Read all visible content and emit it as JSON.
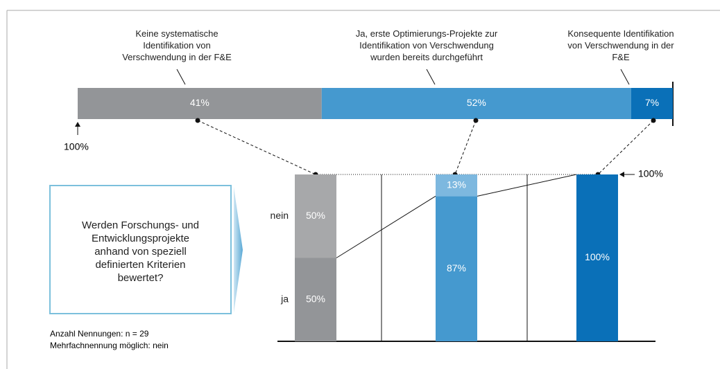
{
  "chart_data": [
    {
      "type": "hbar-stacked",
      "categories": [
        "Keine systematische\nIdentifikation von\nVerschwendung in der F&E",
        "Ja, erste Optimierungs-Projekte zur\nIdentifikation von Verschwendung\nwurden bereits durchgeführt",
        "Konsequente Identifikation\nvon Verschwendung in der\nF&E"
      ],
      "values": [
        41,
        52,
        7
      ],
      "value_labels": [
        "41%",
        "52%",
        "7%"
      ],
      "colors": [
        "#939598",
        "#4599cf",
        "#0a70b8"
      ],
      "xlim": [
        0,
        100
      ],
      "annotation": "100%"
    },
    {
      "type": "column-stacked",
      "categories": [
        null,
        null,
        null
      ],
      "series": [
        {
          "name": "ja",
          "colors": [
            "#939598",
            "#4599cf",
            "#0a70b8"
          ],
          "values": [
            50,
            87,
            100
          ],
          "value_labels": [
            "50%",
            "87%",
            "100%"
          ]
        },
        {
          "name": "nein",
          "colors": [
            "#a7a8aa",
            "#7db8df",
            "#0a70b8"
          ],
          "values": [
            50,
            13,
            0
          ],
          "value_labels": [
            "50%",
            "13%",
            null
          ]
        }
      ],
      "ylim": [
        0,
        100
      ],
      "annotation": "100%"
    }
  ],
  "question": "Werden Forschungs- und\nEntwicklungsprojekte\nanhand von speziell\ndefinierten Kriterien\nbewertet?",
  "notes": [
    "Anzahl Nennungen: n = 29",
    "Mehrfachnennung möglich: nein"
  ]
}
